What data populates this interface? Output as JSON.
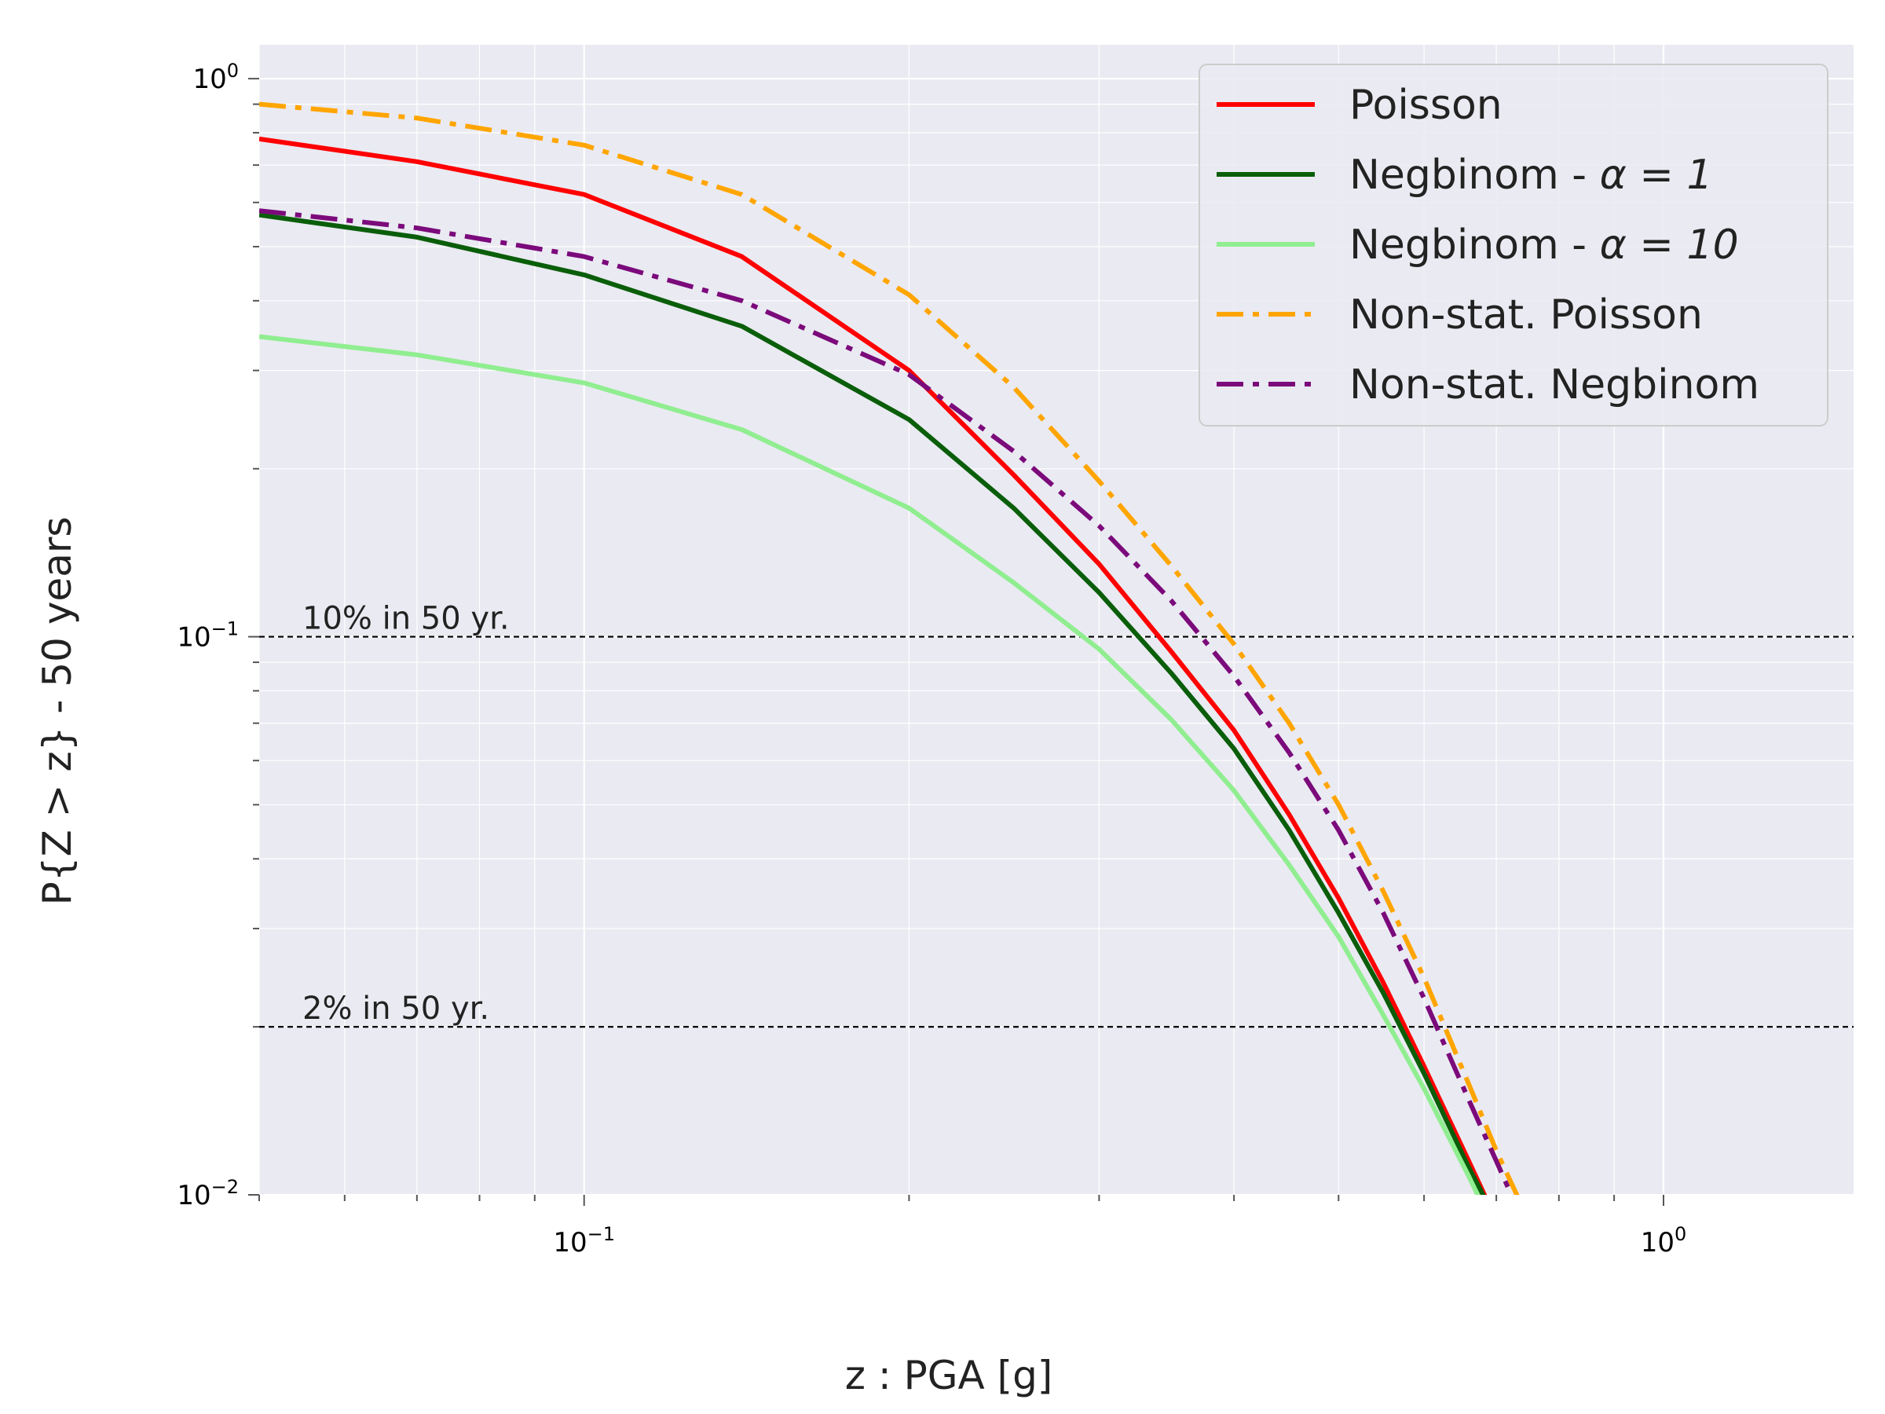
{
  "chart_data": {
    "type": "line",
    "xscale": "log",
    "yscale": "log",
    "xlim": [
      0.05,
      1.5
    ],
    "ylim": [
      0.01,
      1.15
    ],
    "grid": true,
    "legend_position": "top-right",
    "xlabel": "z : PGA [g]",
    "ylabel": "P{Z > z} - 50 years",
    "x_ticks": [
      {
        "value": 0.1,
        "base": "10",
        "exp": "−1"
      },
      {
        "value": 1.0,
        "base": "10",
        "exp": "0"
      }
    ],
    "y_ticks": [
      {
        "value": 1.0,
        "base": "10",
        "exp": "0"
      },
      {
        "value": 0.1,
        "base": "10",
        "exp": "−1"
      },
      {
        "value": 0.01,
        "base": "10",
        "exp": "−2"
      }
    ],
    "hlines": [
      {
        "y": 0.1,
        "label": "10% in 50 yr."
      },
      {
        "y": 0.02,
        "label": "2% in 50 yr."
      }
    ],
    "series": [
      {
        "name": "Poisson",
        "label_prefix": "Poisson",
        "label_math": "",
        "color": "#ff0000",
        "style": "solid",
        "x": [
          0.05,
          0.07,
          0.1,
          0.14,
          0.2,
          0.25,
          0.3,
          0.35,
          0.4,
          0.45,
          0.5,
          0.55,
          0.6,
          0.66,
          0.7
        ],
        "y": [
          0.78,
          0.71,
          0.62,
          0.48,
          0.3,
          0.195,
          0.135,
          0.094,
          0.068,
          0.048,
          0.034,
          0.024,
          0.017,
          0.0115,
          0.009
        ]
      },
      {
        "name": "Negbinom - α = 1",
        "label_prefix": "Negbinom - ",
        "label_math": "α = 1",
        "color": "#0a5e0a",
        "style": "solid",
        "x": [
          0.05,
          0.07,
          0.1,
          0.14,
          0.2,
          0.25,
          0.3,
          0.35,
          0.4,
          0.45,
          0.5,
          0.55,
          0.6,
          0.66,
          0.7
        ],
        "y": [
          0.57,
          0.52,
          0.445,
          0.36,
          0.245,
          0.17,
          0.12,
          0.086,
          0.063,
          0.045,
          0.032,
          0.023,
          0.0165,
          0.0112,
          0.009
        ]
      },
      {
        "name": "Negbinom - α = 10",
        "label_prefix": "Negbinom - ",
        "label_math": "α = 10",
        "color": "#90ee90",
        "style": "solid",
        "x": [
          0.05,
          0.07,
          0.1,
          0.14,
          0.2,
          0.25,
          0.3,
          0.35,
          0.4,
          0.45,
          0.5,
          0.55,
          0.6,
          0.66,
          0.7
        ],
        "y": [
          0.345,
          0.32,
          0.285,
          0.235,
          0.17,
          0.125,
          0.095,
          0.071,
          0.053,
          0.039,
          0.029,
          0.021,
          0.0155,
          0.0108,
          0.0085
        ]
      },
      {
        "name": "Non-stat. Poisson",
        "label_prefix": "Non-stat. Poisson",
        "label_math": "",
        "color": "#ffa500",
        "style": "dashdot",
        "x": [
          0.05,
          0.07,
          0.1,
          0.14,
          0.2,
          0.25,
          0.3,
          0.35,
          0.4,
          0.45,
          0.5,
          0.55,
          0.6,
          0.66,
          0.7,
          0.75
        ],
        "y": [
          0.9,
          0.85,
          0.76,
          0.62,
          0.41,
          0.28,
          0.19,
          0.134,
          0.097,
          0.07,
          0.05,
          0.035,
          0.0245,
          0.0158,
          0.012,
          0.009
        ]
      },
      {
        "name": "Non-stat. Negbinom",
        "label_prefix": "Non-stat. Negbinom",
        "label_math": "",
        "color": "#7b0a7b",
        "style": "dashdot",
        "x": [
          0.05,
          0.07,
          0.1,
          0.14,
          0.2,
          0.25,
          0.3,
          0.35,
          0.4,
          0.45,
          0.5,
          0.55,
          0.6,
          0.66,
          0.7,
          0.75
        ],
        "y": [
          0.58,
          0.54,
          0.48,
          0.4,
          0.295,
          0.215,
          0.158,
          0.116,
          0.085,
          0.062,
          0.045,
          0.032,
          0.0225,
          0.0148,
          0.0115,
          0.0085
        ]
      }
    ]
  }
}
